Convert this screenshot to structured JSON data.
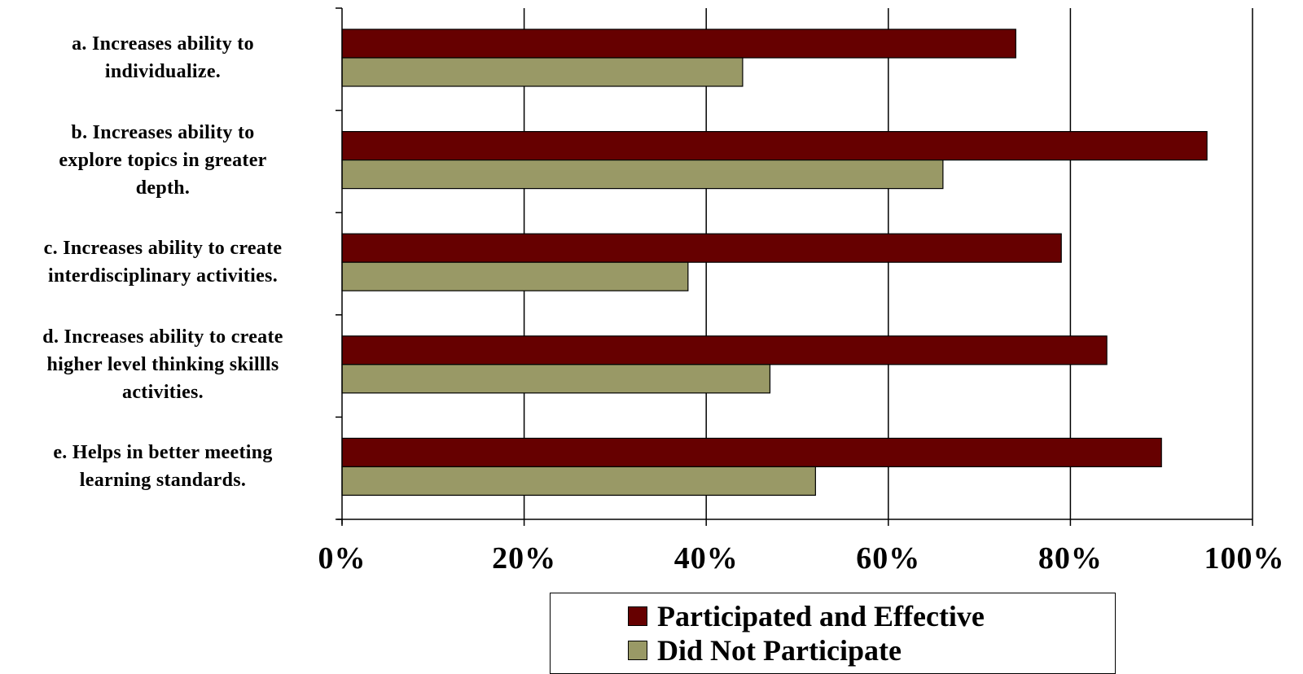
{
  "chart_data": {
    "type": "bar",
    "orientation": "horizontal",
    "categories": [
      "a. Increases ability to individualize.",
      "b. Increases ability to explore topics in greater depth.",
      "c. Increases ability to create interdisciplinary activities.",
      "d. Increases ability to create higher level thinking skillls activities.",
      "e. Helps in better meeting learning standards."
    ],
    "category_lines": [
      [
        "a. Increases ability to",
        "individualize."
      ],
      [
        "b. Increases ability to",
        "explore topics in greater",
        "depth."
      ],
      [
        "c. Increases ability to create",
        "interdisciplinary activities."
      ],
      [
        "d. Increases ability to create",
        "higher level thinking skillls",
        "activities."
      ],
      [
        "e. Helps in better meeting",
        "learning standards."
      ]
    ],
    "series": [
      {
        "name": "Participated and Effective",
        "color": "#660000",
        "values": [
          74,
          95,
          79,
          84,
          90
        ]
      },
      {
        "name": "Did Not Participate",
        "color": "#999966",
        "values": [
          44,
          66,
          38,
          47,
          52
        ]
      }
    ],
    "xlim": [
      0,
      100
    ],
    "x_ticks": [
      "0%",
      "20%",
      "40%",
      "60%",
      "80%",
      "100%"
    ],
    "x_tick_values": [
      0,
      20,
      40,
      60,
      80,
      100
    ],
    "title": "",
    "xlabel": "",
    "ylabel": "",
    "grid": true,
    "legend_position": "bottom-right"
  }
}
